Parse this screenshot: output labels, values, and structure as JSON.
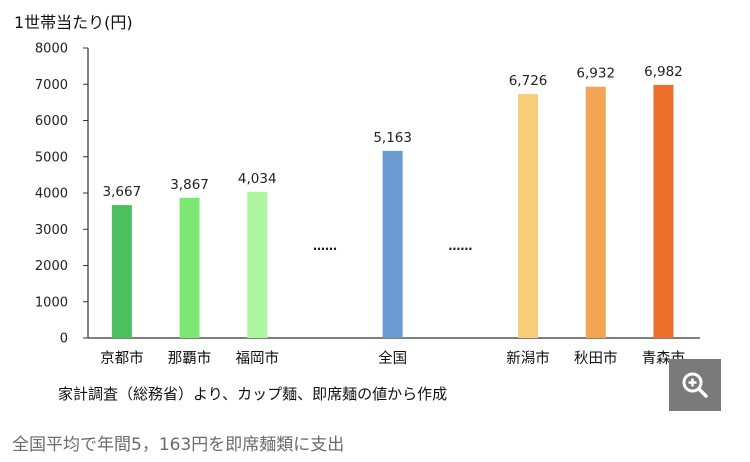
{
  "caption": "全国平均で年間5，163円を即席麺類に支出",
  "source_note": "家計調査（総務省）より、カップ麺、即席麺の値から作成",
  "zoom_icon": "zoom-in-icon",
  "colors": {
    "axis": "#333333",
    "text": "#222222",
    "zoom_bg": "#7a7a7a"
  },
  "chart_data": {
    "type": "bar",
    "ylabel": "1世帯当たり(円)",
    "ylim": [
      0,
      8000
    ],
    "yticks": [
      0,
      1000,
      2000,
      3000,
      4000,
      5000,
      6000,
      7000,
      8000
    ],
    "grid": false,
    "legend": "none",
    "ellipsis_text": "……",
    "categories": [
      "京都市",
      "那覇市",
      "福岡市",
      "……",
      "全国",
      "……",
      "新潟市",
      "秋田市",
      "青森市"
    ],
    "bars": [
      {
        "category": "京都市",
        "value": 3667,
        "label": "3,667",
        "color": "#4cc05e"
      },
      {
        "category": "那覇市",
        "value": 3867,
        "label": "3,867",
        "color": "#7be874"
      },
      {
        "category": "福岡市",
        "value": 4034,
        "label": "4,034",
        "color": "#aef5a0"
      },
      {
        "category": "全国",
        "value": 5163,
        "label": "5,163",
        "color": "#6b9ad2"
      },
      {
        "category": "新潟市",
        "value": 6726,
        "label": "6,726",
        "color": "#f8cd7a"
      },
      {
        "category": "秋田市",
        "value": 6932,
        "label": "6,932",
        "color": "#f3a454"
      },
      {
        "category": "青森市",
        "value": 6982,
        "label": "6,982",
        "color": "#ec6f2a"
      }
    ]
  }
}
